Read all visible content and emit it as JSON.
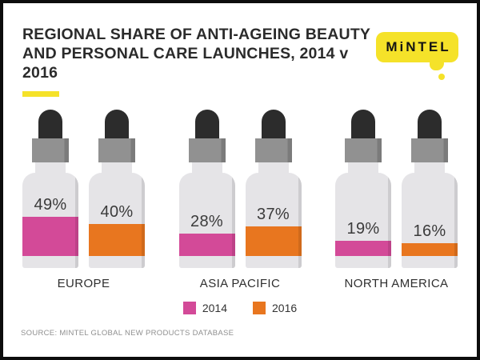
{
  "header": {
    "title_line1": "REGIONAL SHARE OF ANTI-AGEING BEAUTY",
    "title_line2": "AND PERSONAL CARE LAUNCHES, 2014 v 2016",
    "logo_text": "MiNTEL"
  },
  "chart_data": {
    "type": "bar",
    "title": "REGIONAL SHARE OF ANTI-AGEING BEAUTY AND PERSONAL CARE LAUNCHES, 2014 v 2016",
    "categories": [
      "EUROPE",
      "ASIA PACIFIC",
      "NORTH AMERICA"
    ],
    "series": [
      {
        "name": "2014",
        "color": "#d34a98",
        "values": [
          49,
          28,
          19
        ]
      },
      {
        "name": "2016",
        "color": "#e8761f",
        "values": [
          40,
          37,
          16
        ]
      }
    ],
    "value_suffix": "%",
    "unit": "percent share",
    "ylim": [
      0,
      100
    ],
    "grid": false,
    "legend_position": "bottom",
    "pictogram": "dropper-bottle"
  },
  "legend": {
    "items": [
      {
        "label": "2014",
        "color": "#d34a98"
      },
      {
        "label": "2016",
        "color": "#e8761f"
      }
    ]
  },
  "source": {
    "text": "SOURCE: MINTEL GLOBAL NEW PRODUCTS DATABASE"
  },
  "colors": {
    "accent_yellow": "#f5e229",
    "series_2014": "#d34a98",
    "series_2016": "#e8761f",
    "bottle_body": "#e5e4e7",
    "bottle_cap": "#8d8d8d",
    "dropper_bulb": "#2c2c2c"
  }
}
